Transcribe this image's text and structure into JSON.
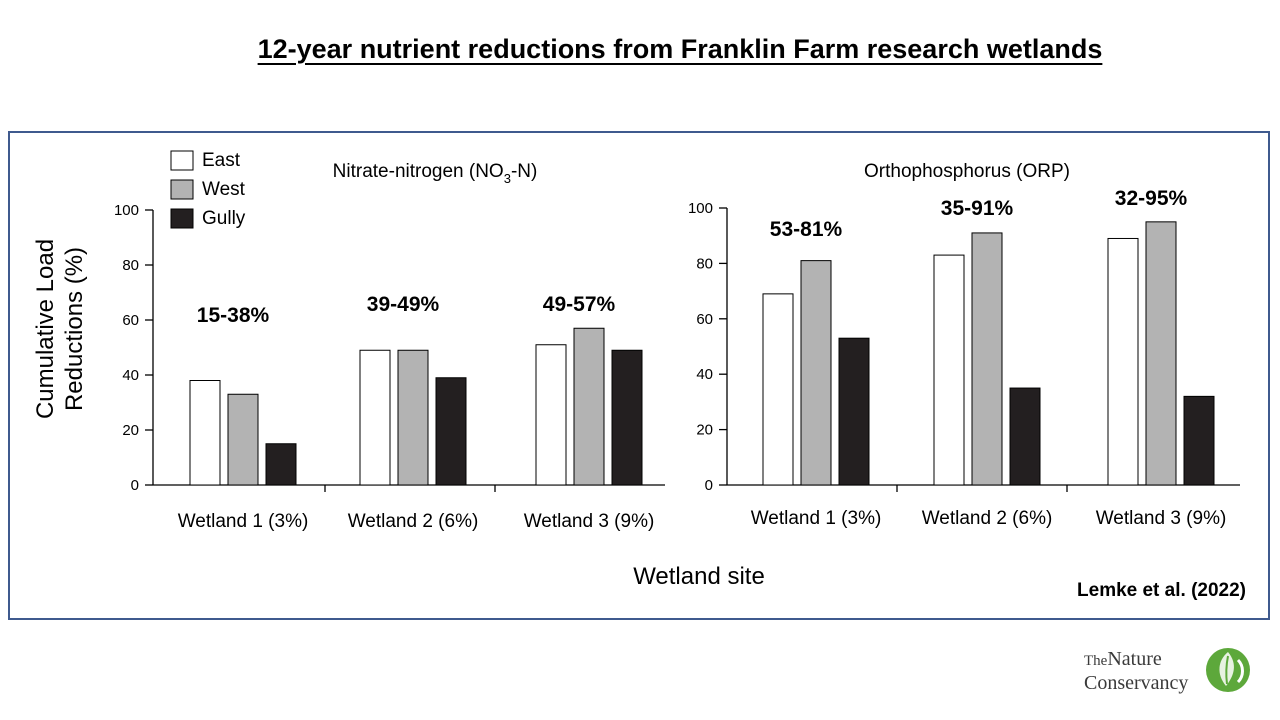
{
  "title": "12-year nutrient reductions from Franklin Farm research wetlands",
  "citation": "Lemke et al. (2022)",
  "logo": {
    "line1_a": "The",
    "line1_b": "Nature",
    "line2": "Conservancy",
    "icon": "leaf-globe-icon",
    "color": "#5da83b"
  },
  "legend": [
    {
      "label": "East",
      "color": "#ffffff"
    },
    {
      "label": "West",
      "color": "#b3b3b3"
    },
    {
      "label": "Gully",
      "color": "#231f20"
    }
  ],
  "chart_data": [
    {
      "type": "bar",
      "title": "Nitrate-nitrogen (NO3-N)",
      "title_parts": {
        "pre": "Nitrate-nitrogen (NO",
        "sub": "3",
        "post": "-N)"
      },
      "ylabel_lines": [
        "Cumulative Load",
        "Reductions (%)"
      ],
      "ylim": [
        0,
        100
      ],
      "yticks": [
        "0",
        "20",
        "40",
        "60",
        "80",
        "100"
      ],
      "categories": [
        "Wetland 1 (3%)",
        "Wetland 2 (6%)",
        "Wetland 3 (9%)"
      ],
      "series": [
        {
          "name": "East",
          "values": [
            38,
            49,
            51
          ]
        },
        {
          "name": "West",
          "values": [
            33,
            49,
            57
          ]
        },
        {
          "name": "Gully",
          "values": [
            15,
            39,
            49
          ]
        }
      ],
      "annotations": [
        "15-38%",
        "39-49%",
        "49-57%"
      ]
    },
    {
      "type": "bar",
      "title": "Orthophosphorus (ORP)",
      "ylim": [
        0,
        100
      ],
      "yticks": [
        "0",
        "20",
        "40",
        "60",
        "80",
        "100"
      ],
      "categories": [
        "Wetland 1 (3%)",
        "Wetland 2 (6%)",
        "Wetland 3 (9%)"
      ],
      "series": [
        {
          "name": "East",
          "values": [
            69,
            83,
            89
          ]
        },
        {
          "name": "West",
          "values": [
            81,
            91,
            95
          ]
        },
        {
          "name": "Gully",
          "values": [
            53,
            35,
            32
          ]
        }
      ],
      "annotations": [
        "53-81%",
        "35-91%",
        "32-95%"
      ]
    }
  ],
  "xlabel": "Wetland site"
}
